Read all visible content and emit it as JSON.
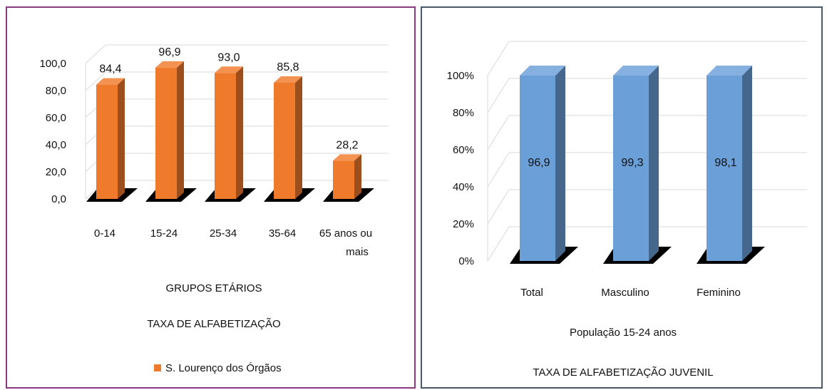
{
  "chart_data": [
    {
      "type": "bar",
      "categories": [
        "0-14",
        "15-24",
        "25-34",
        "35-64",
        "65 anos ou mais"
      ],
      "series": [
        {
          "name": "S. Lourenço dos Órgãos",
          "values": [
            84.4,
            96.9,
            93.0,
            85.8,
            28.2
          ]
        }
      ],
      "data_labels": [
        "84,4",
        "96,9",
        "93,0",
        "85,8",
        "28,2"
      ],
      "ylim": [
        0,
        100
      ],
      "yticks": [
        "0,0",
        "20,0",
        "40,0",
        "60,0",
        "80,0",
        "100,0"
      ],
      "xlabel": "GRUPOS ETÁRIOS",
      "title": "TAXA DE ALFABETIZAÇÃO",
      "legend_position": "bottom",
      "grid": true,
      "bar_color": "#f07a2b"
    },
    {
      "type": "bar",
      "categories": [
        "Total",
        "Masculino",
        "Feminino"
      ],
      "values": [
        96.9,
        99.3,
        98.1
      ],
      "display_percent": [
        100,
        100,
        100
      ],
      "data_labels": [
        "96,9",
        "99,3",
        "98,1"
      ],
      "ylim": [
        0,
        100
      ],
      "yticks": [
        "0%",
        "20%",
        "40%",
        "60%",
        "80%",
        "100%"
      ],
      "xlabel": "População 15-24 anos",
      "title": "TAXA DE ALFABETIZAÇÃO JUVENIL",
      "grid": true,
      "bar_color": "#6a9fd8"
    }
  ]
}
